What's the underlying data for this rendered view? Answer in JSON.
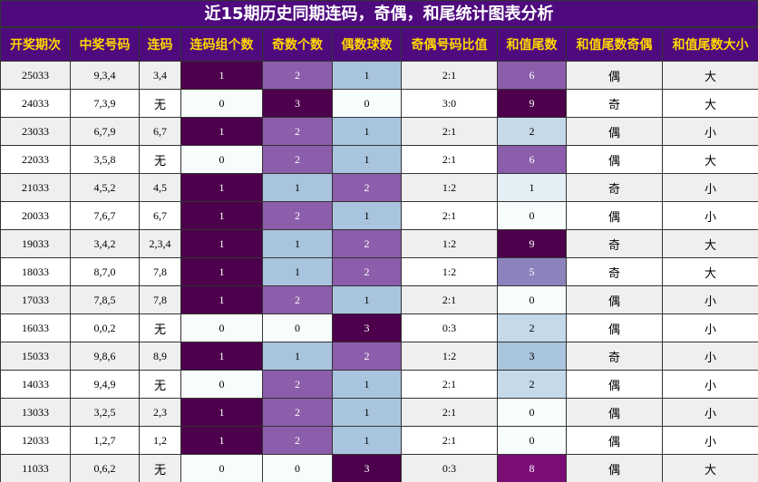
{
  "title": "近15期历史同期连码，奇偶，和尾统计图表分析",
  "headers": [
    "开奖期次",
    "中奖号码",
    "连码",
    "连码组个数",
    "奇数个数",
    "偶数球数",
    "奇偶号码比值",
    "和值尾数",
    "和值尾数奇偶",
    "和值尾数大小"
  ],
  "rows": [
    [
      "25033",
      "9,3,4",
      "3,4",
      1,
      2,
      1,
      "2:1",
      6,
      "偶",
      "大"
    ],
    [
      "24033",
      "7,3,9",
      "无",
      0,
      3,
      0,
      "3:0",
      9,
      "奇",
      "大"
    ],
    [
      "23033",
      "6,7,9",
      "6,7",
      1,
      2,
      1,
      "2:1",
      2,
      "偶",
      "小"
    ],
    [
      "22033",
      "3,5,8",
      "无",
      0,
      2,
      1,
      "2:1",
      6,
      "偶",
      "大"
    ],
    [
      "21033",
      "4,5,2",
      "4,5",
      1,
      1,
      2,
      "1:2",
      1,
      "奇",
      "小"
    ],
    [
      "20033",
      "7,6,7",
      "6,7",
      1,
      2,
      1,
      "2:1",
      0,
      "偶",
      "小"
    ],
    [
      "19033",
      "3,4,2",
      "2,3,4",
      1,
      1,
      2,
      "1:2",
      9,
      "奇",
      "大"
    ],
    [
      "18033",
      "8,7,0",
      "7,8",
      1,
      1,
      2,
      "1:2",
      5,
      "奇",
      "大"
    ],
    [
      "17033",
      "7,8,5",
      "7,8",
      1,
      2,
      1,
      "2:1",
      0,
      "偶",
      "小"
    ],
    [
      "16033",
      "0,0,2",
      "无",
      0,
      0,
      3,
      "0:3",
      2,
      "偶",
      "小"
    ],
    [
      "15033",
      "9,8,6",
      "8,9",
      1,
      1,
      2,
      "1:2",
      3,
      "奇",
      "小"
    ],
    [
      "14033",
      "9,4,9",
      "无",
      0,
      2,
      1,
      "2:1",
      2,
      "偶",
      "小"
    ],
    [
      "13033",
      "3,2,5",
      "2,3",
      1,
      2,
      1,
      "2:1",
      0,
      "偶",
      "小"
    ],
    [
      "12033",
      "1,2,7",
      "1,2",
      1,
      2,
      1,
      "2:1",
      0,
      "偶",
      "小"
    ],
    [
      "11033",
      "0,6,2",
      "无",
      0,
      0,
      3,
      "0:3",
      8,
      "偶",
      "大"
    ]
  ]
}
